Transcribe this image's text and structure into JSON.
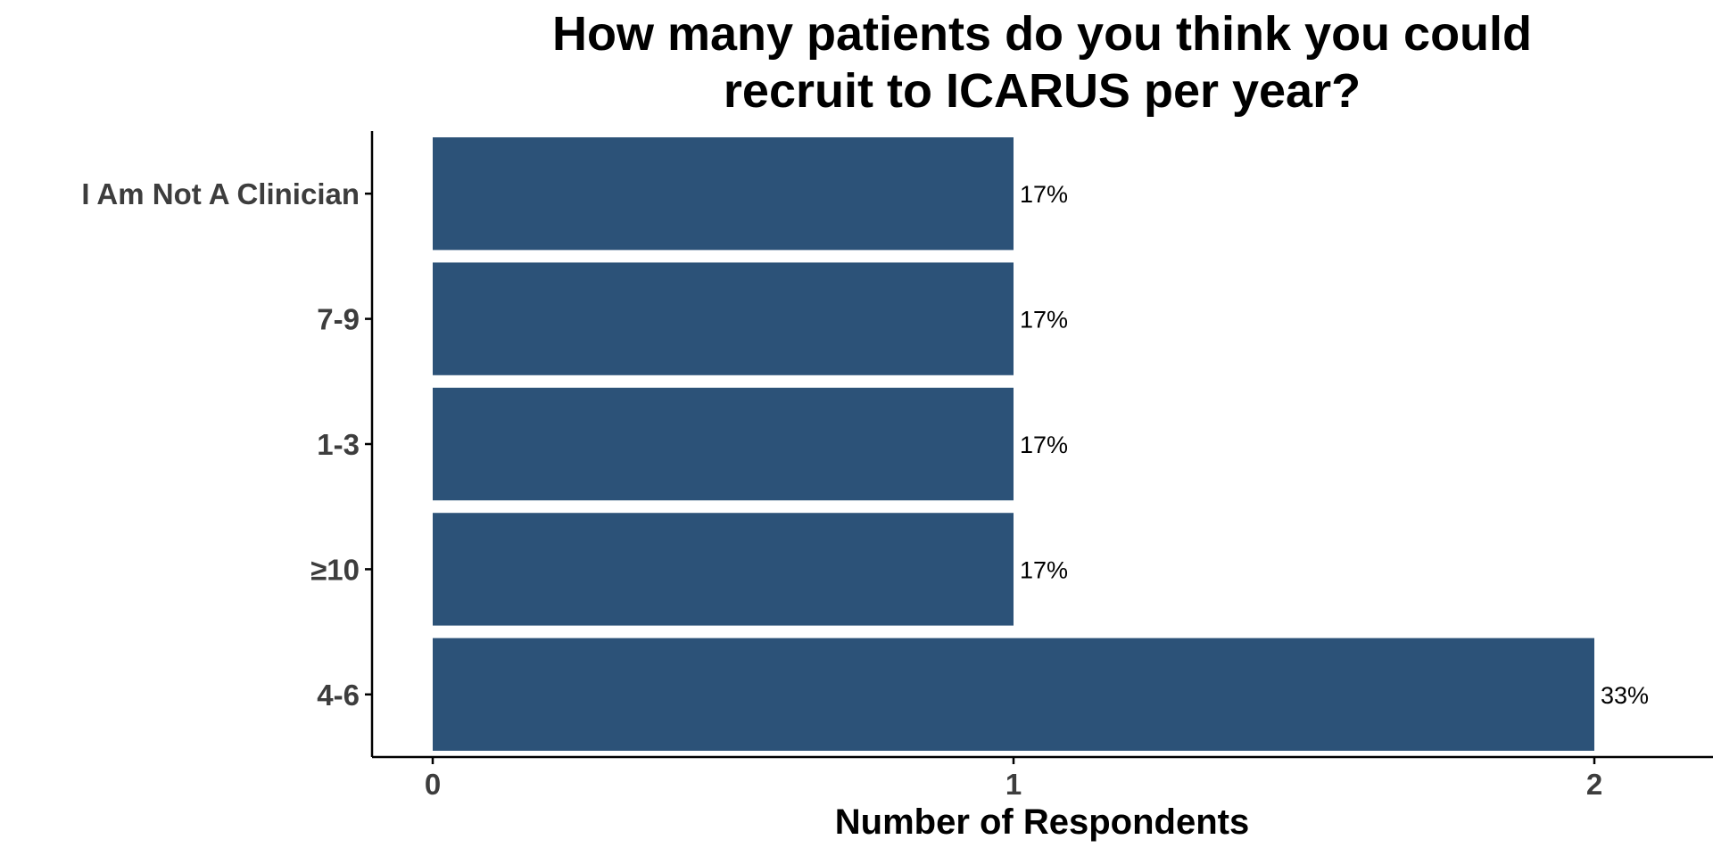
{
  "chart_data": {
    "type": "bar",
    "orientation": "horizontal",
    "title_lines": [
      "How many patients do you think you could",
      "recruit to ICARUS per year?"
    ],
    "xlabel": "Number of Respondents",
    "ylabel": "",
    "categories": [
      "I Am Not A Clinician",
      "7-9",
      "1-3",
      "≥10",
      "4-6"
    ],
    "values": [
      1,
      1,
      1,
      1,
      2
    ],
    "data_labels": [
      "17%",
      "17%",
      "17%",
      "17%",
      "33%"
    ],
    "x_ticks": [
      0,
      1,
      2
    ],
    "x_tick_labels": [
      "0",
      "1",
      "2"
    ],
    "xlim": [
      -0.1,
      2.2
    ],
    "bar_color": "#2c5278",
    "grid": false,
    "legend": "none"
  }
}
